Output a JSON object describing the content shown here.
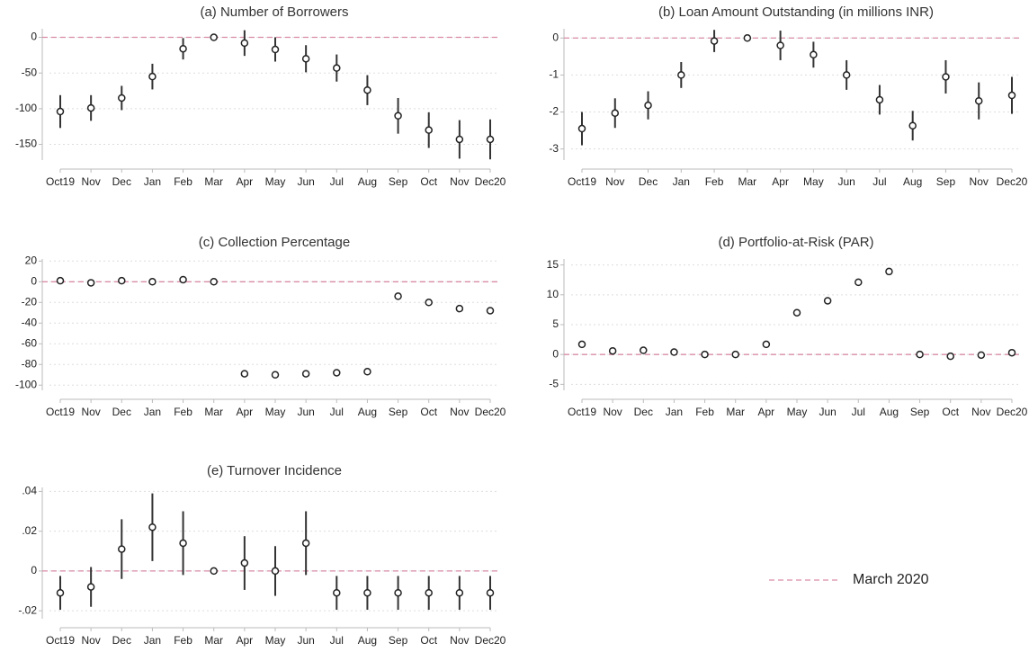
{
  "chart_data": [
    {
      "type": "errorbar",
      "title": "(a) Number of Borrowers",
      "categories": [
        "Oct19",
        "Nov",
        "Dec",
        "Jan",
        "Feb",
        "Mar",
        "Apr",
        "May",
        "Jun",
        "Jul",
        "Aug",
        "Sep",
        "Oct",
        "Nov",
        "Dec20"
      ],
      "values": [
        -104,
        -99,
        -85,
        -55,
        -16,
        0,
        -8,
        -17,
        -30,
        -43,
        -74,
        -110,
        -130,
        -143,
        -143
      ],
      "errors": [
        23,
        18,
        17,
        18,
        15,
        0,
        18,
        17,
        19,
        19,
        21,
        25,
        25,
        27,
        28
      ],
      "ylim": [
        -172,
        12
      ],
      "yticks": [
        0,
        -50,
        -100,
        -150
      ],
      "reference_line": 0,
      "grid": true,
      "color": "#555555"
    },
    {
      "type": "errorbar",
      "title": "(b) Loan Amount Outstanding (in millions INR)",
      "categories": [
        "Oct19",
        "Nov",
        "Dec",
        "Jan",
        "Feb",
        "Mar",
        "Apr",
        "May",
        "Jun",
        "Jul",
        "Aug",
        "Sep",
        "Nov",
        "Dec20"
      ],
      "values": [
        -2.45,
        -2.03,
        -1.82,
        -1.0,
        -0.08,
        0,
        -0.2,
        -0.45,
        -1.0,
        -1.67,
        -2.37,
        -1.05,
        -1.7,
        -1.55
      ],
      "errors": [
        0.45,
        0.4,
        0.38,
        0.35,
        0.3,
        0,
        0.4,
        0.35,
        0.4,
        0.4,
        0.4,
        0.45,
        0.5,
        0.5
      ],
      "ylim": [
        -3.3,
        0.25
      ],
      "yticks": [
        0,
        -1,
        -2,
        -3
      ],
      "reference_line": 0,
      "grid": true,
      "color": "#555555"
    },
    {
      "type": "errorbar",
      "title": "(c) Collection Percentage",
      "categories": [
        "Oct19",
        "Nov",
        "Dec",
        "Jan",
        "Feb",
        "Mar",
        "Apr",
        "May",
        "Jun",
        "Jul",
        "Aug",
        "Sep",
        "Oct",
        "Nov",
        "Dec20"
      ],
      "values": [
        1,
        -1,
        1,
        0,
        2,
        0,
        -89,
        -90,
        -89,
        -88,
        -87,
        -14,
        -20,
        -26,
        -28
      ],
      "errors": [
        0.5,
        0.5,
        0.5,
        0.5,
        0.5,
        0,
        0.5,
        0.5,
        0.5,
        0.5,
        0.5,
        0.5,
        0.5,
        0.5,
        0.5
      ],
      "ylim": [
        -105,
        22
      ],
      "yticks": [
        20,
        0,
        -20,
        -40,
        -60,
        -80,
        -100
      ],
      "reference_line": 0,
      "grid": true,
      "color": "#555555"
    },
    {
      "type": "errorbar",
      "title": "(d) Portfolio-at-Risk (PAR)",
      "categories": [
        "Oct19",
        "Nov",
        "Dec",
        "Jan",
        "Feb",
        "Mar",
        "Apr",
        "May",
        "Jun",
        "Jul",
        "Aug",
        "Sep",
        "Oct",
        "Nov",
        "Dec20"
      ],
      "values": [
        1.7,
        0.6,
        0.7,
        0.4,
        0,
        0,
        1.7,
        7,
        9,
        12.1,
        13.9,
        0,
        -0.3,
        -0.1,
        0.3
      ],
      "errors": [
        0.5,
        0.4,
        0.4,
        0.4,
        0.3,
        0,
        0.5,
        0.5,
        0.5,
        0.6,
        0.6,
        0.4,
        0.4,
        0.4,
        0.5
      ],
      "ylim": [
        -6,
        16
      ],
      "yticks": [
        15,
        10,
        5,
        0,
        -5
      ],
      "reference_line": 0,
      "grid": true,
      "color": "#555555"
    },
    {
      "type": "errorbar",
      "title": "(e) Turnover Incidence",
      "categories": [
        "Oct19",
        "Nov",
        "Dec",
        "Jan",
        "Feb",
        "Mar",
        "Apr",
        "May",
        "Jun",
        "Jul",
        "Aug",
        "Sep",
        "Oct",
        "Nov",
        "Dec20"
      ],
      "values": [
        -0.011,
        -0.008,
        0.011,
        0.022,
        0.014,
        0,
        0.004,
        0,
        0.014,
        -0.011,
        -0.011,
        -0.011,
        -0.011,
        -0.011,
        -0.011
      ],
      "errors": [
        0.0085,
        0.01,
        0.015,
        0.017,
        0.016,
        0,
        0.0135,
        0.0125,
        0.016,
        0.0085,
        0.0085,
        0.0085,
        0.0085,
        0.0085,
        0.0085
      ],
      "ylim": [
        -0.024,
        0.042
      ],
      "yticks": [
        {
          "value": 0.04,
          "label": ".04"
        },
        {
          "value": 0.02,
          "label": ".02"
        },
        0,
        {
          "value": -0.02,
          "label": "-.02"
        }
      ],
      "reference_line": 0,
      "grid": true,
      "color": "#555555"
    }
  ],
  "legend": {
    "label": "March 2020",
    "color": "#d98ca8"
  }
}
